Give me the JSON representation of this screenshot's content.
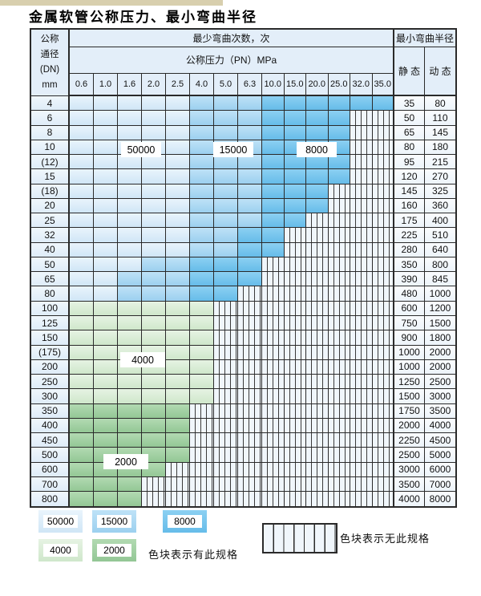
{
  "title": "金属软管公称压力、最小弯曲半径",
  "colors": {
    "zone_50000": "#d0e6f6",
    "zone_15000": "#9cd0ef",
    "zone_8000": "#66bce9",
    "zone_4000": "#cfe7cb",
    "zone_2000": "#93c795",
    "hatch_background": "#f0f6fb",
    "table_border": "#2a2a2a",
    "header_background": "#e3eef9",
    "top_strip": "#d8cfae"
  },
  "table": {
    "dn_header_lines": [
      "公称",
      "通径",
      "(DN)",
      "mm"
    ],
    "bend_cycles_header": "最少弯曲次数，次",
    "pressure_header": "公称压力（PN）MPa",
    "radius_header": "最小弯曲半径",
    "static_header": "静 态",
    "dynamic_header": "动 态",
    "pressure_columns": [
      "0.6",
      "1.0",
      "1.6",
      "2.0",
      "2.5",
      "4.0",
      "5.0",
      "6.3",
      "10.0",
      "15.0",
      "20.0",
      "25.0",
      "32.0",
      "35.0"
    ],
    "zone_codes": {
      "A": "50000次区",
      "B": "15000次区",
      "C": "8000次区",
      "G": "4000次区",
      "H": "2000次区",
      "N": "无此规格(竖线填充)"
    },
    "rows": [
      {
        "dn": "4",
        "cells": "AAAAABBBCCCCCC",
        "static": "35",
        "dynamic": "80"
      },
      {
        "dn": "6",
        "cells": "AAAAABBBCCCCNN",
        "static": "50",
        "dynamic": "110"
      },
      {
        "dn": "8",
        "cells": "AAAAABBBCCCCNN",
        "static": "65",
        "dynamic": "145"
      },
      {
        "dn": "10",
        "cells": "AAAAABBBCCCCNN",
        "static": "80",
        "dynamic": "180"
      },
      {
        "dn": "(12)",
        "cells": "AAAAABBBCCCCNN",
        "static": "95",
        "dynamic": "215"
      },
      {
        "dn": "15",
        "cells": "AAAAABBBCCCCNN",
        "static": "120",
        "dynamic": "270"
      },
      {
        "dn": "(18)",
        "cells": "AAAAABBBCCCNNN",
        "static": "145",
        "dynamic": "325"
      },
      {
        "dn": "20",
        "cells": "AAAAABBBCCCNNN",
        "static": "160",
        "dynamic": "360"
      },
      {
        "dn": "25",
        "cells": "AAAAABBBCCNNNN",
        "static": "175",
        "dynamic": "400"
      },
      {
        "dn": "32",
        "cells": "AAAAABBCCNNNNN",
        "static": "225",
        "dynamic": "510"
      },
      {
        "dn": "40",
        "cells": "AAAAABBCCNNNNN",
        "static": "280",
        "dynamic": "640"
      },
      {
        "dn": "50",
        "cells": "AAABBCCCNNNNNN",
        "static": "350",
        "dynamic": "800"
      },
      {
        "dn": "65",
        "cells": "AABBBCCCNNNNNN",
        "static": "390",
        "dynamic": "845"
      },
      {
        "dn": "80",
        "cells": "AABBBCCNNNNNNN",
        "static": "480",
        "dynamic": "1000"
      },
      {
        "dn": "100",
        "cells": "GGGGGGNNNNNNNN",
        "static": "600",
        "dynamic": "1200"
      },
      {
        "dn": "125",
        "cells": "GGGGGGNNNNNNNN",
        "static": "750",
        "dynamic": "1500"
      },
      {
        "dn": "150",
        "cells": "GGGGGGNNNNNNNN",
        "static": "900",
        "dynamic": "1800"
      },
      {
        "dn": "(175)",
        "cells": "GGGGGGNNNNNNNN",
        "static": "1000",
        "dynamic": "2000"
      },
      {
        "dn": "200",
        "cells": "GGGGGGNNNNNNNN",
        "static": "1000",
        "dynamic": "2000"
      },
      {
        "dn": "250",
        "cells": "GGGGGGNNNNNNNN",
        "static": "1250",
        "dynamic": "2500"
      },
      {
        "dn": "300",
        "cells": "GGGGGGNNNNNNNN",
        "static": "1500",
        "dynamic": "3000"
      },
      {
        "dn": "350",
        "cells": "HHHHHNNNNNNNNN",
        "static": "1750",
        "dynamic": "3500"
      },
      {
        "dn": "400",
        "cells": "HHHHHNNNNNNNNN",
        "static": "2000",
        "dynamic": "4000"
      },
      {
        "dn": "450",
        "cells": "HHHHHNNNNNNNNN",
        "static": "2250",
        "dynamic": "4500"
      },
      {
        "dn": "500",
        "cells": "HHHHHNNNNNNNNN",
        "static": "2500",
        "dynamic": "5000"
      },
      {
        "dn": "600",
        "cells": "HHHHNNNNNNNNNN",
        "static": "3000",
        "dynamic": "6000"
      },
      {
        "dn": "700",
        "cells": "HHHNNNNNNNNNNN",
        "static": "3500",
        "dynamic": "7000"
      },
      {
        "dn": "800",
        "cells": "HHHNNNNNNNNNNN",
        "static": "4000",
        "dynamic": "8000"
      }
    ]
  },
  "overlay_labels": {
    "b50000": "50000",
    "b15000": "15000",
    "b8000": "8000",
    "g4000": "4000",
    "g2000": "2000"
  },
  "legend": {
    "items": [
      {
        "value": "50000",
        "zone": "A"
      },
      {
        "value": "15000",
        "zone": "B"
      },
      {
        "value": "8000",
        "zone": "C"
      },
      {
        "value": "4000",
        "zone": "G"
      },
      {
        "value": "2000",
        "zone": "H"
      }
    ],
    "has_spec_text": "色块表示有此规格",
    "no_spec_text": "色块表示无此规格"
  }
}
